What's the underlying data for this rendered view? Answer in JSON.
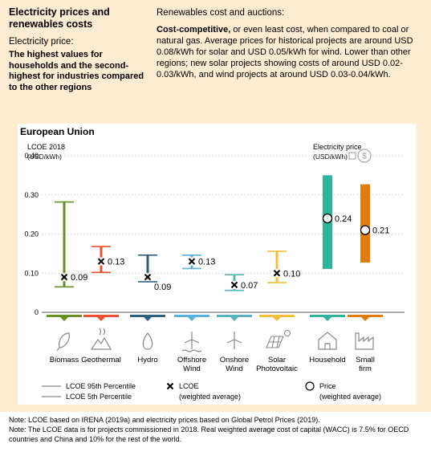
{
  "header": {
    "title": "Electricity prices and renewables costs",
    "price_heading": "Electricity price:",
    "price_text": "The highest values for households and the second-highest for industries compared to the other regions",
    "renew_heading": "Renewables cost and auctions:",
    "renew_bold": "Cost-competitive,",
    "renew_text": " or even least cost, when compared to coal or natural gas. Average prices for historical projects are around USD 0.08/kWh for solar and USD 0.05/kWh for wind. Lower than other regions; new solar projects showing costs of around USD 0.02-0.03/kWh, and wind projects at around USD 0.03-0.04/kWh."
  },
  "chart_data": {
    "type": "range-bar",
    "region": "European Union",
    "ylabel": "LCOE 2018",
    "yunit": "(USD/kWh)",
    "yticks": [
      "0.40",
      "0.30",
      "0.20",
      "0.10",
      "0"
    ],
    "ylim": [
      0,
      0.4
    ],
    "price_label": "Electricity price",
    "price_unit": "(USD/kWh)",
    "lcoe": [
      {
        "name": "Biomass",
        "p5": 0.065,
        "p95": 0.282,
        "avg": 0.09,
        "label": "0.09",
        "color": "#6b8e23",
        "icon": "biomass-icon"
      },
      {
        "name": "Geothermal",
        "p5": 0.102,
        "p95": 0.168,
        "avg": 0.13,
        "label": "0.13",
        "color": "#e8502f",
        "icon": "geothermal-icon"
      },
      {
        "name": "Hydro",
        "p5": 0.078,
        "p95": 0.146,
        "avg": 0.09,
        "label": "0.09",
        "color": "#2f5f7e",
        "icon": "hydro-icon"
      },
      {
        "name": "Offshore\nWind",
        "p5": 0.112,
        "p95": 0.146,
        "avg": 0.13,
        "label": "0.13",
        "color": "#58b2e0",
        "icon": "offshore-wind-icon"
      },
      {
        "name": "Onshore\nWind",
        "p5": 0.056,
        "p95": 0.096,
        "avg": 0.07,
        "label": "0.07",
        "color": "#56b3bf",
        "icon": "onshore-wind-icon"
      },
      {
        "name": "Solar\nPhotovoltaic",
        "p5": 0.076,
        "p95": 0.156,
        "avg": 0.1,
        "label": "0.10",
        "color": "#f2bf3c",
        "icon": "solar-pv-icon"
      }
    ],
    "prices": [
      {
        "name": "Household",
        "low": 0.111,
        "high": 0.35,
        "avg": 0.24,
        "label": "0.24",
        "color": "#2fb39a",
        "icon": "household-icon"
      },
      {
        "name": "Small\nfirm",
        "low": 0.127,
        "high": 0.327,
        "avg": 0.21,
        "label": "0.21",
        "color": "#df7c0b",
        "icon": "small-firm-icon"
      }
    ],
    "legend": {
      "p95": "LCOE 95th Percentile",
      "p5": "LCOE 5th Percentile",
      "lcoe": "LCOE",
      "lcoe_sub": "(weighted average)",
      "price": "Price",
      "price_sub": "(weighted average)"
    }
  },
  "notes": [
    "Note: LCOE based on IRENA (2019a) and electricity prices based on Global Petrol Prices (2019).",
    "Note: The LCOE data is for projects commissioned in 2018. Real weighted average cost of capital (WACC) is 7.5% for OECD countries and China and 10% for the rest of the world."
  ]
}
